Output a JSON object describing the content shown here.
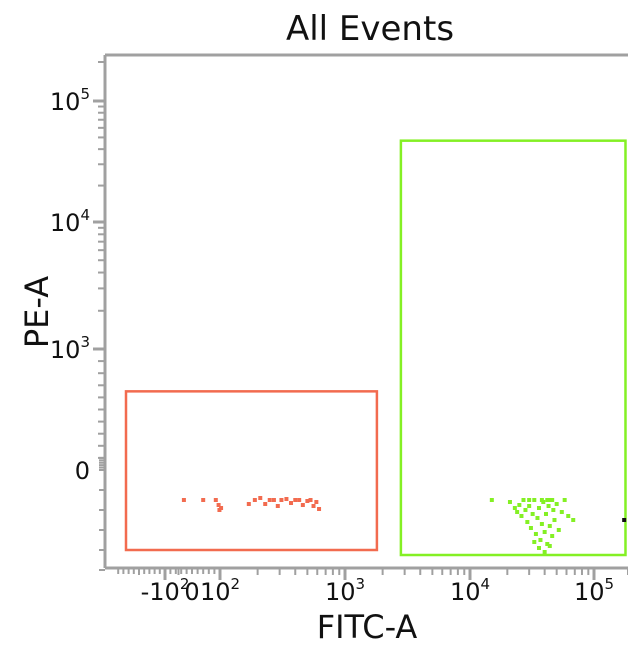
{
  "chart_data": {
    "type": "scatter",
    "title": "All Events",
    "xlabel": "FITC-A",
    "ylabel": "PE-A",
    "x_scale": "biexponential",
    "y_scale": "biexponential",
    "xlim": [
      -300,
      200000
    ],
    "ylim": [
      -100,
      200000
    ],
    "grid": false,
    "x_ticks": [
      {
        "value": -100,
        "base": "-10",
        "exp": "2"
      },
      {
        "value": 0,
        "base": "0",
        "exp": ""
      },
      {
        "value": 100,
        "base": "10",
        "exp": "2"
      },
      {
        "value": 1000,
        "base": "10",
        "exp": "3"
      },
      {
        "value": 10000,
        "base": "10",
        "exp": "4"
      },
      {
        "value": 100000,
        "base": "10",
        "exp": "5"
      }
    ],
    "y_ticks": [
      {
        "value": 0,
        "base": "0",
        "exp": ""
      },
      {
        "value": 1000,
        "base": "10",
        "exp": "3"
      },
      {
        "value": 10000,
        "base": "10",
        "exp": "4"
      },
      {
        "value": 100000,
        "base": "10",
        "exp": "5"
      }
    ],
    "gates": [
      {
        "color": "#f26b4f",
        "x_range": [
          -250,
          1800
        ],
        "y_range": [
          -80,
          650
        ]
      },
      {
        "color": "#84f024",
        "x_range": [
          2800,
          190000
        ],
        "y_range": [
          -85,
          47000
        ]
      }
    ],
    "series": [
      {
        "color": "#f26b4f",
        "points": [
          [
            -30,
            -30
          ],
          [
            40,
            -30
          ],
          [
            85,
            -30
          ],
          [
            95,
            -35
          ],
          [
            98,
            -40
          ],
          [
            102,
            -38
          ],
          [
            170,
            -34
          ],
          [
            190,
            -30
          ],
          [
            210,
            -28
          ],
          [
            230,
            -34
          ],
          [
            250,
            -30
          ],
          [
            270,
            -30
          ],
          [
            290,
            -36
          ],
          [
            310,
            -30
          ],
          [
            340,
            -29
          ],
          [
            370,
            -33
          ],
          [
            400,
            -30
          ],
          [
            430,
            -30
          ],
          [
            460,
            -35
          ],
          [
            500,
            -31
          ],
          [
            530,
            -30
          ],
          [
            560,
            -36
          ],
          [
            590,
            -32
          ],
          [
            620,
            -39
          ]
        ]
      },
      {
        "color": "#84f024",
        "points": [
          [
            15000,
            -30
          ],
          [
            21000,
            -32
          ],
          [
            23000,
            -38
          ],
          [
            24000,
            -42
          ],
          [
            25000,
            -35
          ],
          [
            26000,
            -46
          ],
          [
            27000,
            -30
          ],
          [
            28000,
            -40
          ],
          [
            29000,
            -52
          ],
          [
            30000,
            -36
          ],
          [
            31000,
            -58
          ],
          [
            32000,
            -44
          ],
          [
            33000,
            -30
          ],
          [
            34000,
            -64
          ],
          [
            35000,
            -48
          ],
          [
            36000,
            -38
          ],
          [
            37000,
            -70
          ],
          [
            38000,
            -54
          ],
          [
            39000,
            -32
          ],
          [
            40000,
            -62
          ],
          [
            41000,
            -44
          ],
          [
            42000,
            -74
          ],
          [
            43000,
            -36
          ],
          [
            44000,
            -56
          ],
          [
            45000,
            -30
          ],
          [
            46000,
            -66
          ],
          [
            47000,
            -40
          ],
          [
            48000,
            -50
          ],
          [
            50000,
            -34
          ],
          [
            52000,
            -60
          ],
          [
            55000,
            -42
          ],
          [
            58000,
            -30
          ],
          [
            62000,
            -46
          ],
          [
            68000,
            -50
          ],
          [
            36000,
            -78
          ],
          [
            40000,
            -82
          ],
          [
            33000,
            -72
          ],
          [
            44000,
            -76
          ],
          [
            38000,
            -30
          ],
          [
            42000,
            -30
          ],
          [
            46000,
            -30
          ],
          [
            30000,
            -30
          ]
        ]
      },
      {
        "color": "#111111",
        "points": [
          [
            185000,
            -50
          ]
        ]
      }
    ]
  }
}
